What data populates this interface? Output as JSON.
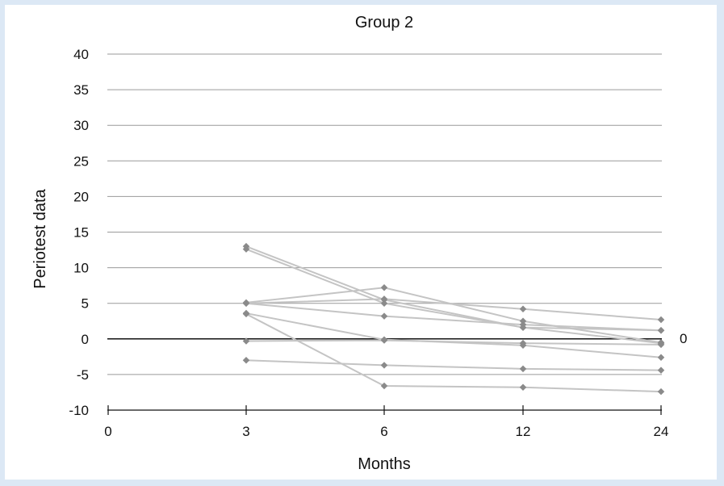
{
  "chart_data": {
    "type": "line",
    "title": "Group 2",
    "xlabel": "Months",
    "ylabel": "Periotest data",
    "x_ticks": [
      "0",
      "3",
      "6",
      "12",
      "24"
    ],
    "x_categories": [
      "3",
      "6",
      "12",
      "24"
    ],
    "ylim": [
      -10,
      40
    ],
    "y_ticks": [
      "-10",
      "-5",
      "0",
      "5",
      "10",
      "15",
      "20",
      "25",
      "30",
      "35",
      "40"
    ],
    "zero_line_label": "0",
    "grid": "horizontal",
    "series": [
      {
        "values": [
          13.0,
          5.5,
          1.6,
          1.2
        ]
      },
      {
        "values": [
          12.6,
          5.0,
          1.6,
          -0.6
        ]
      },
      {
        "values": [
          5.1,
          7.2,
          2.5,
          -0.5
        ]
      },
      {
        "values": [
          5.0,
          5.6,
          4.2,
          2.7
        ]
      },
      {
        "values": [
          3.6,
          -0.1,
          -0.9,
          -2.6
        ]
      },
      {
        "values": [
          3.5,
          -6.6,
          -6.8,
          -7.4
        ]
      },
      {
        "values": [
          5.0,
          3.2,
          2.0,
          1.2
        ]
      },
      {
        "values": [
          -0.3,
          -0.2,
          -0.6,
          -0.8
        ]
      },
      {
        "values": [
          -3.0,
          -3.7,
          -4.2,
          -4.4
        ]
      }
    ],
    "colors": {
      "series": "#c4c4c4",
      "marker": "#8a8a8a",
      "grid": "#9a9a9a",
      "zero_line": "#111111"
    }
  }
}
